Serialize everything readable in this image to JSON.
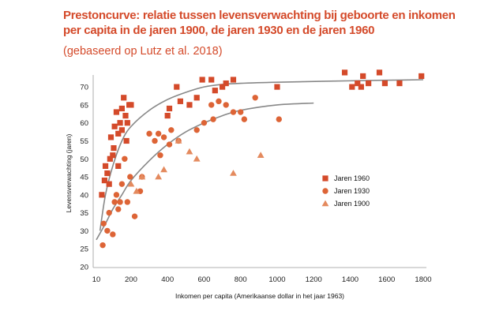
{
  "title": "Prestoncurve: relatie tussen levensverwachting bij geboorte en inkomen per capita in de jaren 1900, de jaren 1930 en de jaren 1960",
  "subtitle": "(gebaseerd op Lutz et al. 2018)",
  "colors": {
    "title": "#d44a2a",
    "j1960": "#d44a2a",
    "j1930": "#dd6436",
    "j1900": "#e48a5e",
    "curve": "#888888"
  },
  "chart_data": {
    "type": "scatter",
    "xlabel": "Inkomen per capita (Amerikaanse dollar in het jaar 1963)",
    "ylabel": "Levensverwachting (jaren)",
    "xlim": [
      10,
      1800
    ],
    "ylim": [
      20,
      72
    ],
    "x_ticks": [
      10,
      200,
      400,
      600,
      800,
      1000,
      1200,
      1400,
      1600,
      1800
    ],
    "y_ticks": [
      20,
      25,
      30,
      35,
      40,
      45,
      50,
      55,
      60,
      65,
      70
    ],
    "grid": false,
    "legend_position": "right",
    "series": [
      {
        "name": "Jaren 1960",
        "marker": "square",
        "points": [
          [
            40,
            40
          ],
          [
            55,
            44
          ],
          [
            60,
            48
          ],
          [
            70,
            46
          ],
          [
            80,
            43
          ],
          [
            85,
            50
          ],
          [
            90,
            56
          ],
          [
            100,
            51
          ],
          [
            105,
            53
          ],
          [
            110,
            59
          ],
          [
            120,
            63
          ],
          [
            130,
            48
          ],
          [
            130,
            57
          ],
          [
            140,
            60
          ],
          [
            150,
            58
          ],
          [
            150,
            64
          ],
          [
            160,
            67
          ],
          [
            170,
            62
          ],
          [
            175,
            55
          ],
          [
            180,
            60
          ],
          [
            190,
            65
          ],
          [
            200,
            65
          ],
          [
            400,
            62
          ],
          [
            410,
            64
          ],
          [
            450,
            70
          ],
          [
            470,
            66
          ],
          [
            520,
            65
          ],
          [
            560,
            67
          ],
          [
            590,
            72
          ],
          [
            640,
            72
          ],
          [
            660,
            69
          ],
          [
            700,
            70
          ],
          [
            720,
            71
          ],
          [
            760,
            72
          ],
          [
            1000,
            70
          ],
          [
            1370,
            74
          ],
          [
            1410,
            70
          ],
          [
            1440,
            71
          ],
          [
            1460,
            70
          ],
          [
            1470,
            73
          ],
          [
            1500,
            71
          ],
          [
            1560,
            74
          ],
          [
            1590,
            71
          ],
          [
            1670,
            71
          ],
          [
            1790,
            73
          ]
        ]
      },
      {
        "name": "Jaren 1930",
        "marker": "circle",
        "points": [
          [
            45,
            26
          ],
          [
            50,
            32
          ],
          [
            70,
            30
          ],
          [
            80,
            35
          ],
          [
            100,
            29
          ],
          [
            110,
            38
          ],
          [
            120,
            40
          ],
          [
            130,
            36
          ],
          [
            140,
            38
          ],
          [
            150,
            43
          ],
          [
            165,
            50
          ],
          [
            180,
            38
          ],
          [
            195,
            45
          ],
          [
            220,
            34
          ],
          [
            250,
            41
          ],
          [
            260,
            45
          ],
          [
            300,
            57
          ],
          [
            330,
            55
          ],
          [
            350,
            57
          ],
          [
            360,
            51
          ],
          [
            380,
            56
          ],
          [
            410,
            54
          ],
          [
            420,
            58
          ],
          [
            460,
            55
          ],
          [
            560,
            58
          ],
          [
            600,
            60
          ],
          [
            640,
            65
          ],
          [
            650,
            61
          ],
          [
            680,
            66
          ],
          [
            720,
            65
          ],
          [
            760,
            63
          ],
          [
            800,
            63
          ],
          [
            820,
            61
          ],
          [
            880,
            67
          ],
          [
            1010,
            61
          ]
        ]
      },
      {
        "name": "Jaren 1900",
        "marker": "triangle",
        "points": [
          [
            200,
            43
          ],
          [
            230,
            41
          ],
          [
            260,
            45
          ],
          [
            350,
            45
          ],
          [
            380,
            47
          ],
          [
            460,
            55
          ],
          [
            520,
            52
          ],
          [
            560,
            50
          ],
          [
            760,
            46
          ],
          [
            910,
            51
          ]
        ]
      }
    ],
    "trend_curves": [
      {
        "series": "Jaren 1960",
        "points": [
          [
            30,
            30
          ],
          [
            60,
            40
          ],
          [
            100,
            48
          ],
          [
            150,
            55
          ],
          [
            200,
            59
          ],
          [
            300,
            63.5
          ],
          [
            400,
            66.5
          ],
          [
            500,
            68.5
          ],
          [
            600,
            70
          ],
          [
            700,
            70.7
          ],
          [
            800,
            71
          ],
          [
            1000,
            71.3
          ],
          [
            1400,
            71.7
          ],
          [
            1800,
            72
          ]
        ]
      },
      {
        "series": "Jaren 1930",
        "points": [
          [
            10,
            27.5
          ],
          [
            60,
            32
          ],
          [
            100,
            36
          ],
          [
            150,
            40
          ],
          [
            200,
            44
          ],
          [
            300,
            49.5
          ],
          [
            400,
            54
          ],
          [
            500,
            57.5
          ],
          [
            600,
            60
          ],
          [
            700,
            62
          ],
          [
            800,
            63.5
          ],
          [
            1000,
            65
          ],
          [
            1200,
            65.5
          ]
        ]
      }
    ]
  }
}
